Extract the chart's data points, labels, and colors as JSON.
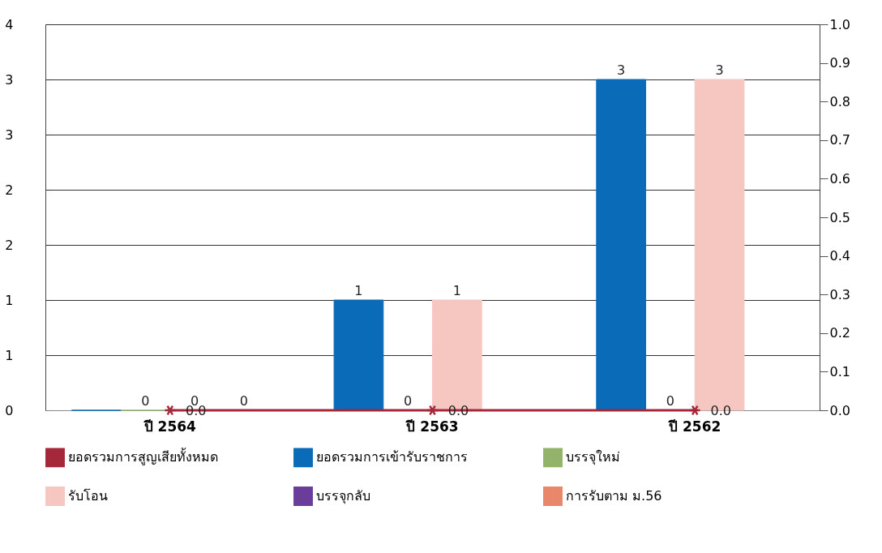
{
  "chart_data": {
    "type": "bar",
    "categories": [
      "ปี 2564",
      "ปี 2563",
      "ปี 2562"
    ],
    "series": [
      {
        "name": "ยอดรวมการสูญเสียทั้งหมด",
        "type": "line",
        "axis": "y2",
        "color": "#a5283a",
        "values": [
          0,
          0,
          0
        ],
        "value_labels": [
          "0.0",
          "0.0",
          "0.0"
        ],
        "marker": "cross"
      },
      {
        "name": "ยอดรวมการเข้ารับราชการ",
        "color": "#0a6bb8",
        "values": [
          0,
          1,
          3
        ],
        "value_labels": [
          null,
          "1",
          "3"
        ]
      },
      {
        "name": "บรรจุใหม่",
        "color": "#93b26a",
        "values": [
          0,
          0,
          0
        ],
        "value_labels": [
          "0",
          "0",
          "0"
        ]
      },
      {
        "name": "รับโอน",
        "color": "#f6c7c0",
        "values": [
          0,
          1,
          3
        ],
        "value_labels": [
          "0",
          "1",
          "3"
        ]
      },
      {
        "name": "บรรจุกลับ",
        "color": "#6a3d9a",
        "values": [
          0,
          null,
          null
        ],
        "value_labels": [
          "0",
          null,
          null
        ]
      },
      {
        "name": "การรับตาม ม.56",
        "color": "#e8876a",
        "values": [
          null,
          null,
          null
        ]
      }
    ],
    "ylim": [
      0,
      3.5
    ],
    "yticks": [
      0,
      {
        "value": 0.5,
        "label": "1"
      },
      1,
      {
        "value": 1.5,
        "label": "2"
      },
      2,
      {
        "value": 2.5,
        "label": "3"
      },
      3,
      {
        "value": 3.5,
        "label": "4"
      }
    ],
    "y2lim": [
      0,
      1.0
    ],
    "y2ticks": [
      {
        "value": 0,
        "label": "0.0"
      },
      0.1,
      0.2,
      0.3,
      0.4,
      0.5,
      0.6,
      0.7,
      0.8,
      0.9,
      {
        "value": 1,
        "label": "1.0"
      }
    ],
    "grid": "y",
    "legend": "bottom"
  }
}
